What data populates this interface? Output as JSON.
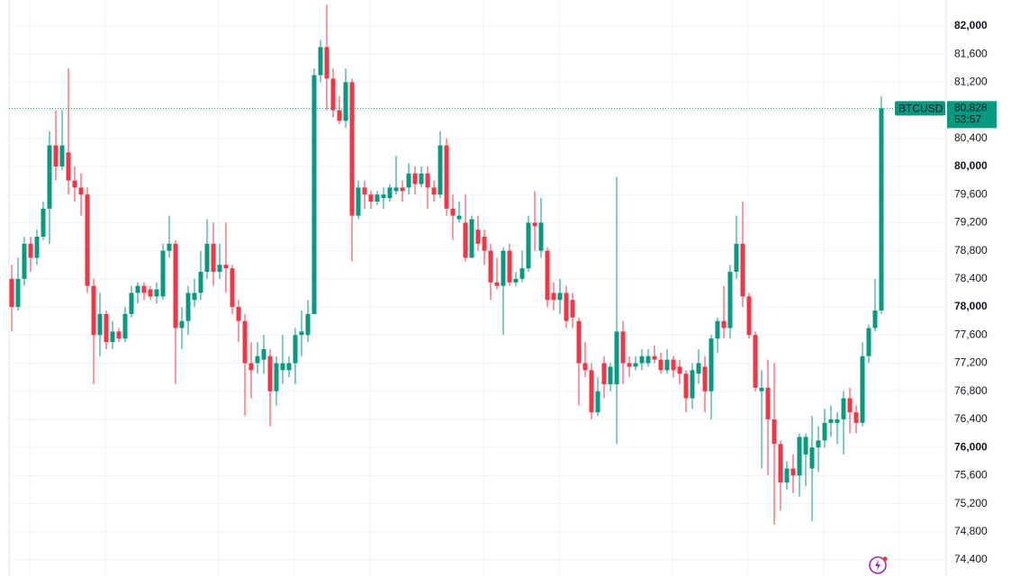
{
  "chart_data": {
    "type": "candlestick",
    "symbol": "BTCUSD",
    "up_color": "#089981",
    "down_color": "#f23645",
    "ylim": [
      74170,
      82370
    ],
    "yticks": [
      {
        "value": 74400,
        "label": "74,400"
      },
      {
        "value": 74800,
        "label": "74,800"
      },
      {
        "value": 75200,
        "label": "75,200"
      },
      {
        "value": 75600,
        "label": "75,600"
      },
      {
        "value": 76000,
        "label": "76,000"
      },
      {
        "value": 76400,
        "label": "76,400"
      },
      {
        "value": 76800,
        "label": "76,800"
      },
      {
        "value": 77200,
        "label": "77,200"
      },
      {
        "value": 77600,
        "label": "77,600"
      },
      {
        "value": 78000,
        "label": "78,000"
      },
      {
        "value": 78400,
        "label": "78,400"
      },
      {
        "value": 78800,
        "label": "78,800"
      },
      {
        "value": 79200,
        "label": "79,200"
      },
      {
        "value": 79600,
        "label": "79,600"
      },
      {
        "value": 80000,
        "label": "80,000"
      },
      {
        "value": 80400,
        "label": "80,400"
      },
      {
        "value": 80800,
        "label": "80,800"
      },
      {
        "value": 81200,
        "label": "81,200"
      },
      {
        "value": 81600,
        "label": "81,600"
      },
      {
        "value": 82000,
        "label": "82,000"
      }
    ],
    "grid": true,
    "last_price": {
      "value": 80828,
      "label": "80,828"
    },
    "countdown": "53:57",
    "open": [
      78400,
      78000,
      78400,
      78900,
      78700,
      79000,
      79400,
      80300,
      80000,
      80200,
      79800,
      79700,
      79600,
      78300,
      77600,
      77900,
      77500,
      77650,
      77550,
      77900,
      78200,
      78300,
      78250,
      78150,
      78150,
      78800,
      78900,
      77700,
      77800,
      78100,
      78200,
      78500,
      78900,
      78500,
      78600,
      78550,
      78000,
      77800,
      77200,
      77200,
      77250,
      77300,
      76800,
      77100,
      77100,
      77200,
      77600,
      77600,
      77900,
      81300,
      81700,
      81250,
      80800,
      80650,
      81200,
      79300,
      79700,
      79600,
      79500,
      79550,
      79550,
      79650,
      79700,
      79700,
      79900,
      79750,
      79900,
      79700,
      79600,
      80300,
      79400,
      79250,
      79200,
      78700,
      79100,
      79000,
      78800,
      78350,
      78300,
      78800,
      78350,
      78400,
      78550,
      79200,
      78800,
      78800,
      78200,
      78100,
      78200,
      78100,
      77800,
      77200,
      77100,
      76500,
      77200,
      76900,
      76900,
      77650,
      77200,
      77150,
      77200,
      77200,
      77300,
      77250,
      77100,
      77250,
      77150,
      77050,
      76700,
      77050,
      77150,
      76800,
      77550,
      77800,
      77700,
      78500,
      78900,
      78150,
      77600,
      76800,
      76850,
      76400,
      76050,
      75500,
      75700,
      75600,
      75900,
      75700,
      76000,
      76100,
      76350,
      76350,
      76400,
      76700,
      76500,
      76350,
      77300,
      77700,
      77950
    ],
    "high": [
      78600,
      78700,
      79000,
      79000,
      79100,
      79500,
      80500,
      80800,
      80800,
      81400,
      80000,
      79900,
      79700,
      78400,
      78200,
      77950,
      77800,
      77700,
      78000,
      78300,
      78350,
      78350,
      78300,
      78350,
      78900,
      79300,
      78950,
      78000,
      78300,
      78400,
      78800,
      79250,
      79200,
      78900,
      79200,
      78600,
      78100,
      77900,
      77500,
      77500,
      77600,
      77400,
      77300,
      77600,
      77300,
      77700,
      77950,
      78100,
      81400,
      81800,
      82300,
      81400,
      81000,
      81400,
      81250,
      79800,
      79800,
      79650,
      79650,
      79700,
      79750,
      80150,
      79800,
      80050,
      80000,
      80000,
      80000,
      79800,
      80500,
      80400,
      79600,
      79500,
      79600,
      79300,
      79300,
      79100,
      78900,
      78700,
      78850,
      78900,
      78500,
      78800,
      79300,
      79650,
      79550,
      78850,
      78350,
      78400,
      78300,
      78200,
      77850,
      77500,
      77200,
      77000,
      77300,
      77200,
      79850,
      77800,
      77300,
      77300,
      77400,
      77400,
      77450,
      77350,
      77400,
      77300,
      77250,
      77100,
      77200,
      77400,
      77300,
      77600,
      77850,
      78300,
      78600,
      79300,
      79500,
      78200,
      77650,
      77100,
      77250,
      77200,
      76100,
      75800,
      75900,
      76200,
      76200,
      76450,
      76300,
      76550,
      76600,
      76500,
      76800,
      76850,
      76600,
      77500,
      77750,
      78400,
      81000
    ],
    "low": [
      77650,
      77950,
      78300,
      78500,
      78600,
      78950,
      78900,
      79800,
      79950,
      79600,
      79500,
      79300,
      78200,
      76900,
      77300,
      77400,
      77400,
      77500,
      77500,
      77850,
      78050,
      78100,
      78100,
      78050,
      78100,
      78700,
      76900,
      77400,
      77600,
      78000,
      78100,
      78400,
      78300,
      78400,
      78200,
      77900,
      77500,
      76450,
      76700,
      77050,
      77050,
      76300,
      76600,
      76900,
      77000,
      76900,
      77300,
      77500,
      77900,
      81200,
      80800,
      80700,
      80600,
      80550,
      78650,
      79250,
      79400,
      79400,
      79450,
      79400,
      79500,
      79600,
      79500,
      79600,
      79600,
      79700,
      79400,
      79500,
      79550,
      79300,
      78950,
      79200,
      78650,
      78700,
      78800,
      78600,
      78100,
      78250,
      77600,
      78300,
      78300,
      78350,
      78500,
      78800,
      78700,
      78000,
      77950,
      77900,
      77700,
      77700,
      76600,
      77000,
      76400,
      76450,
      76700,
      76800,
      76050,
      76900,
      77000,
      77100,
      77100,
      77150,
      77200,
      77050,
      77050,
      77000,
      76900,
      76500,
      76550,
      76900,
      76500,
      76400,
      77350,
      77550,
      77550,
      78400,
      78000,
      77550,
      76800,
      75700,
      75600,
      74900,
      75100,
      75400,
      75350,
      75300,
      75450,
      74950,
      75650,
      76000,
      76150,
      76050,
      75900,
      76200,
      76200,
      76300,
      77200,
      77650,
      77900
    ],
    "close": [
      78000,
      78400,
      78900,
      78700,
      79000,
      79400,
      80300,
      80000,
      80300,
      79800,
      79700,
      79600,
      78300,
      77600,
      77900,
      77500,
      77650,
      77550,
      77900,
      78200,
      78300,
      78200,
      78150,
      78250,
      78800,
      78900,
      77700,
      77800,
      78200,
      78200,
      78500,
      78900,
      78500,
      78600,
      78550,
      78000,
      77800,
      77200,
      77100,
      77300,
      77400,
      76800,
      77200,
      77200,
      77200,
      77600,
      77650,
      77900,
      81300,
      81700,
      81250,
      80800,
      80650,
      81200,
      79300,
      79700,
      79600,
      79500,
      79600,
      79600,
      79700,
      79700,
      79650,
      79900,
      79750,
      79900,
      79700,
      79600,
      80300,
      79400,
      79300,
      79300,
      78700,
      79250,
      78900,
      78800,
      78350,
      78300,
      78800,
      78350,
      78400,
      78550,
      79200,
      79150,
      79200,
      78100,
      78100,
      78200,
      77800,
      77850,
      77200,
      77100,
      76500,
      76800,
      76900,
      77150,
      77650,
      77200,
      77150,
      77200,
      77300,
      77300,
      77250,
      77100,
      77250,
      77100,
      77050,
      76700,
      77100,
      77200,
      76800,
      77550,
      77800,
      77700,
      78500,
      78900,
      78150,
      77600,
      76850,
      76850,
      76400,
      76050,
      75500,
      75700,
      75600,
      76150,
      76150,
      76000,
      76100,
      76350,
      76400,
      76400,
      76700,
      76500,
      76350,
      77300,
      77700,
      77950,
      80828
    ]
  }
}
